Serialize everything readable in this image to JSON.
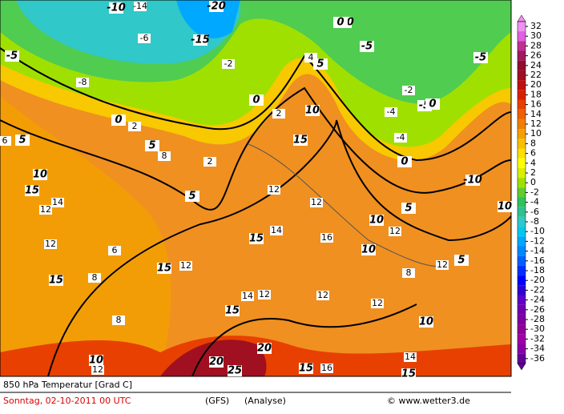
{
  "map": {
    "title": "850 hPa Temperatur [Grad C]",
    "date": "Sonntag, 02-10-2011  00 UTC",
    "model": "(GFS)",
    "run": "(Analyse)",
    "credit": "© www.wetter3.de",
    "contour_labels": [
      "-5",
      "-10",
      "-15",
      "-20",
      "-10",
      "-5",
      "0",
      "5",
      "0",
      "5",
      "10",
      "15",
      "10",
      "5",
      "0",
      "-5",
      "-10",
      "-5",
      "0",
      "5",
      "10",
      "15",
      "15",
      "15",
      "10",
      "15",
      "10",
      "5",
      "0",
      "15",
      "20",
      "25",
      "20",
      "15",
      "15",
      "10",
      "5",
      "10"
    ],
    "value_labels": [
      "-14",
      "-8",
      "-6",
      "-2",
      "2",
      "4",
      "8",
      "12",
      "14",
      "12",
      "12",
      "8",
      "6",
      "12",
      "14",
      "12",
      "12",
      "16",
      "12",
      "12",
      "8",
      "12",
      "14",
      "2",
      "-2",
      "-4",
      "12",
      "14",
      "16",
      "8",
      "12",
      "6",
      "2",
      "-4"
    ]
  },
  "colorbar": {
    "ticks": [
      32,
      30,
      28,
      26,
      24,
      22,
      20,
      18,
      16,
      14,
      12,
      10,
      8,
      6,
      4,
      2,
      0,
      -2,
      -4,
      -6,
      -8,
      -10,
      -12,
      -14,
      -16,
      -18,
      -20,
      -22,
      -24,
      -26,
      -28,
      -30,
      -32,
      -34,
      -36
    ],
    "colors": [
      "#f090f0",
      "#e060e0",
      "#c03090",
      "#a01860",
      "#900c30",
      "#a01020",
      "#c01010",
      "#d82000",
      "#e84000",
      "#ee6000",
      "#f08000",
      "#f4a000",
      "#f8c000",
      "#fce000",
      "#ffff00",
      "#d8f000",
      "#a0e000",
      "#60cc30",
      "#30c060",
      "#30c090",
      "#30c8c8",
      "#00c8f0",
      "#00a8ff",
      "#0088ff",
      "#0060ff",
      "#0030ff",
      "#0000ff",
      "#3000d0",
      "#6000c8",
      "#7000b0",
      "#8000a0",
      "#900098",
      "#a000a8",
      "#8800a8",
      "#660099"
    ]
  }
}
